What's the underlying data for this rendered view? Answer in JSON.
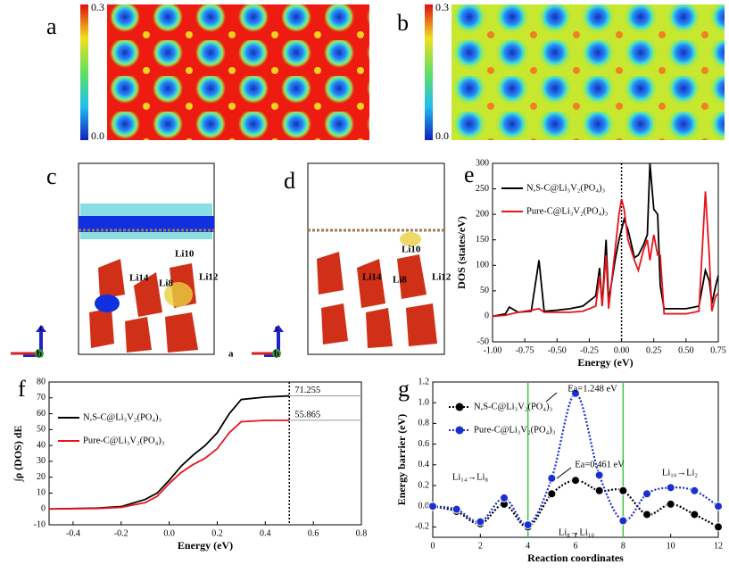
{
  "panel_labels": [
    "a",
    "b",
    "c",
    "d",
    "e",
    "f",
    "g"
  ],
  "heatmaps": [
    {
      "max_label": "0.3",
      "min_label": "0.0"
    },
    {
      "max_label": "0.3",
      "min_label": "0.0"
    }
  ],
  "structures": [
    {
      "atoms": [
        "Li14",
        "Li8",
        "Li12",
        "Li10"
      ],
      "axes": [
        "c",
        "b"
      ]
    },
    {
      "atoms": [
        "Li14",
        "Li8",
        "Li12",
        "Li10"
      ],
      "axes": [
        "c",
        "a",
        "b"
      ]
    }
  ],
  "chart_data": [
    {
      "type": "line",
      "ylabel": "DOS (states/eV)",
      "xlabel": "Energy (eV)",
      "xlim": [
        -1,
        0.75
      ],
      "ylim": [
        -50,
        300
      ],
      "xticks": [
        {
          "value": -1,
          "label": "-1.00"
        },
        {
          "value": -0.75,
          "label": "-0.75"
        },
        {
          "value": -0.5,
          "label": "-0.50"
        },
        {
          "value": -0.25,
          "label": "-0.25"
        },
        {
          "value": 0,
          "label": "0.00"
        },
        {
          "value": 0.25,
          "label": "0.25"
        },
        {
          "value": 0.5,
          "label": "0.50"
        },
        {
          "value": 0.75,
          "label": "0.75"
        }
      ],
      "yticks": [
        -50,
        0,
        50,
        100,
        150,
        200,
        250,
        300
      ],
      "vlines": [
        0
      ],
      "legend": "upper left",
      "x": [
        -1,
        -0.9,
        -0.87,
        -0.8,
        -0.7,
        -0.64,
        -0.6,
        -0.5,
        -0.4,
        -0.3,
        -0.2,
        -0.17,
        -0.15,
        -0.12,
        -0.1,
        -0.05,
        -0.02,
        0,
        0.02,
        0.05,
        0.1,
        0.13,
        0.17,
        0.2,
        0.22,
        0.25,
        0.28,
        0.3,
        0.33,
        0.4,
        0.5,
        0.6,
        0.65,
        0.68,
        0.7,
        0.73,
        0.75
      ],
      "series": [
        {
          "name": "N,S-C@Li₃V₂(PO₄)₃",
          "color": "#000000",
          "values": [
            0,
            5,
            18,
            8,
            10,
            110,
            10,
            12,
            15,
            20,
            40,
            95,
            20,
            150,
            30,
            110,
            150,
            170,
            190,
            170,
            115,
            120,
            140,
            160,
            300,
            210,
            200,
            60,
            15,
            15,
            15,
            20,
            90,
            70,
            25,
            60,
            80
          ]
        },
        {
          "name": "Pure-C@Li₃V₂(PO₄)₃",
          "color": "#e8141c",
          "values": [
            0,
            2,
            4,
            8,
            12,
            15,
            8,
            8,
            8,
            10,
            20,
            80,
            20,
            120,
            15,
            130,
            200,
            230,
            210,
            150,
            110,
            90,
            130,
            150,
            110,
            160,
            120,
            120,
            5,
            5,
            5,
            10,
            245,
            120,
            10,
            40,
            45
          ]
        }
      ]
    },
    {
      "type": "line",
      "ylabel": "∫ρ (DOS) dE",
      "xlabel": "Energy (eV)",
      "xlim": [
        -0.5,
        0.8
      ],
      "ylim": [
        -10,
        80
      ],
      "xticks": [
        -0.4,
        -0.2,
        {
          "value": 0,
          "label": "0.0"
        },
        0.2,
        0.4,
        0.6,
        0.8
      ],
      "yticks": [
        -10,
        0,
        10,
        20,
        30,
        40,
        50,
        60,
        70,
        80
      ],
      "vlines": [
        0.5
      ],
      "legend": "upper left",
      "annotations": [
        "71.255",
        "55.865"
      ],
      "x": [
        -0.5,
        -0.3,
        -0.2,
        -0.1,
        -0.05,
        0,
        0.05,
        0.1,
        0.15,
        0.2,
        0.25,
        0.3,
        0.4,
        0.5
      ],
      "series": [
        {
          "name": "N,S-C@Li₃V₂(PO₄)₃",
          "color": "#000000",
          "values": [
            0,
            0.5,
            1.5,
            6,
            10,
            18,
            27,
            34,
            40,
            48,
            60,
            69,
            70.5,
            71.255
          ]
        },
        {
          "name": "Pure-C@Li₃V₂(PO₄)₃",
          "color": "#e8141c",
          "values": [
            0,
            0.3,
            1,
            4,
            8,
            16,
            23,
            28,
            32,
            38,
            48,
            55,
            55.8,
            55.865
          ]
        }
      ]
    },
    {
      "type": "line",
      "ylabel": "Energy barrier (eV)",
      "xlabel": "Reaction coordinates",
      "xlim": [
        0,
        12
      ],
      "ylim": [
        -0.3,
        1.2
      ],
      "xticks": [
        0,
        2,
        4,
        6,
        8,
        10,
        12
      ],
      "yticks": [
        -0.2,
        {
          "value": 0,
          "label": "0.0"
        },
        0.2,
        0.4,
        0.6,
        0.8,
        {
          "value": 1,
          "label": "1.0"
        },
        1.2
      ],
      "vlines": [
        4,
        8
      ],
      "vline_color": "#3ec83e",
      "smooth": true,
      "markers": true,
      "legend": "upper left",
      "annotations": [
        "Ea=1.248 eV",
        "Ea=0.461 eV",
        "Li₁₄→Li₈",
        "Li₈→Li₁₀",
        "Li₁₀→Li₂"
      ],
      "x": [
        0,
        1,
        2,
        3,
        4,
        5,
        6,
        7,
        8,
        9,
        10,
        11,
        12
      ],
      "series": [
        {
          "name": "N,S-C@Li₃V₂(PO₄)₃",
          "color": "#000000",
          "values": [
            0,
            -0.05,
            -0.17,
            0.02,
            -0.2,
            0.12,
            0.25,
            0.15,
            0.15,
            -0.08,
            0.02,
            -0.08,
            -0.2
          ]
        },
        {
          "name": "Pure-C@Li₃V₂(PO₄)₃",
          "color": "#1a2fd0",
          "values": [
            0,
            -0.03,
            -0.15,
            0.08,
            -0.18,
            0.27,
            1.09,
            0.3,
            -0.14,
            0.12,
            0.18,
            0.15,
            0
          ]
        }
      ]
    }
  ]
}
